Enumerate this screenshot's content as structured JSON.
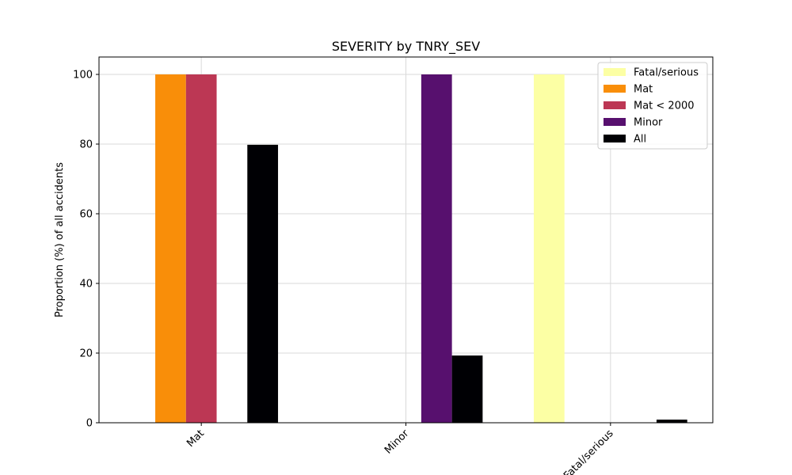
{
  "chart_data": {
    "type": "bar",
    "title": "SEVERITY by TNRY_SEV",
    "xlabel": "",
    "ylabel": "Proportion (%) of all accidents",
    "ylim": [
      0,
      105
    ],
    "yticks": [
      0,
      20,
      40,
      60,
      80,
      100
    ],
    "grid": true,
    "legend_position": "top-right",
    "categories": [
      "Mat",
      "Minor",
      "Fatal/serious"
    ],
    "series": [
      {
        "name": "Fatal/serious",
        "color": "#fcffa4",
        "values": [
          0,
          0,
          100
        ]
      },
      {
        "name": "Mat",
        "color": "#f98e09",
        "values": [
          100,
          0,
          0
        ]
      },
      {
        "name": "Mat < 2000",
        "color": "#bc3754",
        "values": [
          100,
          0,
          0
        ]
      },
      {
        "name": "Minor",
        "color": "#57106e",
        "values": [
          0,
          100,
          0
        ]
      },
      {
        "name": "All",
        "color": "#000004",
        "values": [
          79.8,
          19.3,
          0.9
        ]
      }
    ]
  }
}
